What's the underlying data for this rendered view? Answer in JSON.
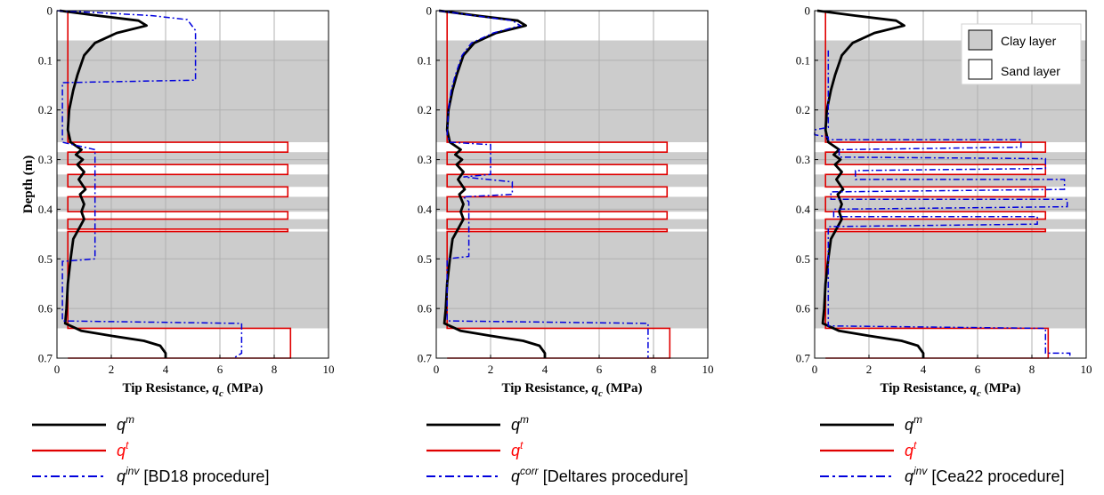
{
  "colors": {
    "measured": "#000000",
    "true": "#e00000",
    "corrected": "#0000dd",
    "clay": "#cccccc",
    "grid": "#b0b0b0"
  },
  "chart_data": [
    {
      "type": "line",
      "xlabel_main": "Tip Resistance, ",
      "xlabel_sym": "q",
      "xlabel_sub": "c",
      "xlabel_unit": " (MPa)",
      "ylabel": "Depth (m)",
      "xlim": [
        0,
        10
      ],
      "ylim": [
        0,
        0.7
      ],
      "y_inverted": true,
      "xticks": [
        "0",
        "2",
        "4",
        "6",
        "8",
        "10"
      ],
      "yticks": [
        "0",
        "0.1",
        "0.2",
        "0.3",
        "0.4",
        "0.5",
        "0.6",
        "0.7"
      ],
      "grid": true,
      "clay_layers": [
        [
          0.06,
          0.265
        ],
        [
          0.285,
          0.31
        ],
        [
          0.33,
          0.355
        ],
        [
          0.375,
          0.405
        ],
        [
          0.42,
          0.44
        ],
        [
          0.445,
          0.64
        ]
      ],
      "true_profile": {
        "base": 0.4,
        "sand": [
          [
            0.265,
            0.285,
            8.5
          ],
          [
            0.31,
            0.33,
            8.5
          ],
          [
            0.355,
            0.375,
            8.5
          ],
          [
            0.405,
            0.42,
            8.5
          ],
          [
            0.44,
            0.445,
            8.5
          ],
          [
            0.64,
            0.7,
            8.6
          ]
        ]
      },
      "series": [
        {
          "role": "measured",
          "points": [
            [
              0.1,
              0
            ],
            [
              1.5,
              0.01
            ],
            [
              3.0,
              0.02
            ],
            [
              3.3,
              0.03
            ],
            [
              2.2,
              0.045
            ],
            [
              1.4,
              0.065
            ],
            [
              1.0,
              0.09
            ],
            [
              0.75,
              0.13
            ],
            [
              0.6,
              0.16
            ],
            [
              0.45,
              0.2
            ],
            [
              0.4,
              0.24
            ],
            [
              0.5,
              0.265
            ],
            [
              0.9,
              0.28
            ],
            [
              0.7,
              0.29
            ],
            [
              0.95,
              0.3
            ],
            [
              0.75,
              0.31
            ],
            [
              1.0,
              0.325
            ],
            [
              0.8,
              0.34
            ],
            [
              1.05,
              0.36
            ],
            [
              0.85,
              0.37
            ],
            [
              1.0,
              0.39
            ],
            [
              0.9,
              0.405
            ],
            [
              1.0,
              0.42
            ],
            [
              0.8,
              0.44
            ],
            [
              0.6,
              0.46
            ],
            [
              0.5,
              0.5
            ],
            [
              0.4,
              0.55
            ],
            [
              0.35,
              0.6
            ],
            [
              0.3,
              0.63
            ],
            [
              0.9,
              0.645
            ],
            [
              2.0,
              0.655
            ],
            [
              3.2,
              0.665
            ],
            [
              3.8,
              0.675
            ],
            [
              4.0,
              0.69
            ],
            [
              4.0,
              0.7
            ]
          ]
        },
        {
          "role": "corrected",
          "name_base": "q",
          "name_sup": "inv",
          "name_suffix": " [BD18 procedure]",
          "points": [
            [
              0,
              0
            ],
            [
              1.5,
              0.004
            ],
            [
              3.5,
              0.01
            ],
            [
              4.8,
              0.018
            ],
            [
              5.1,
              0.04
            ],
            [
              5.1,
              0.14
            ],
            [
              0.2,
              0.145
            ],
            [
              0.2,
              0.265
            ],
            [
              1.4,
              0.28
            ],
            [
              1.4,
              0.5
            ],
            [
              0.2,
              0.505
            ],
            [
              0.2,
              0.625
            ],
            [
              6.8,
              0.63
            ],
            [
              6.8,
              0.69
            ],
            [
              6.5,
              0.7
            ]
          ]
        }
      ]
    },
    {
      "type": "line",
      "xlabel_main": "Tip Resistance, ",
      "xlabel_sym": "q",
      "xlabel_sub": "c",
      "xlabel_unit": " (MPa)",
      "ylabel": "",
      "xlim": [
        0,
        10
      ],
      "ylim": [
        0,
        0.7
      ],
      "y_inverted": true,
      "xticks": [
        "0",
        "2",
        "4",
        "6",
        "8",
        "10"
      ],
      "yticks": [
        "0",
        "0.1",
        "0.2",
        "0.3",
        "0.4",
        "0.5",
        "0.6",
        "0.7"
      ],
      "grid": true,
      "clay_layers": [
        [
          0.06,
          0.265
        ],
        [
          0.285,
          0.31
        ],
        [
          0.33,
          0.355
        ],
        [
          0.375,
          0.405
        ],
        [
          0.42,
          0.44
        ],
        [
          0.445,
          0.64
        ]
      ],
      "true_profile": {
        "base": 0.4,
        "sand": [
          [
            0.265,
            0.285,
            8.5
          ],
          [
            0.31,
            0.33,
            8.5
          ],
          [
            0.355,
            0.375,
            8.5
          ],
          [
            0.405,
            0.42,
            8.5
          ],
          [
            0.44,
            0.445,
            8.5
          ],
          [
            0.64,
            0.7,
            8.6
          ]
        ]
      },
      "series": [
        {
          "role": "measured",
          "points": [
            [
              0.1,
              0
            ],
            [
              1.5,
              0.01
            ],
            [
              3.0,
              0.02
            ],
            [
              3.3,
              0.03
            ],
            [
              2.2,
              0.045
            ],
            [
              1.4,
              0.065
            ],
            [
              1.0,
              0.09
            ],
            [
              0.75,
              0.13
            ],
            [
              0.6,
              0.16
            ],
            [
              0.45,
              0.2
            ],
            [
              0.4,
              0.24
            ],
            [
              0.5,
              0.265
            ],
            [
              0.9,
              0.28
            ],
            [
              0.7,
              0.29
            ],
            [
              0.95,
              0.3
            ],
            [
              0.75,
              0.31
            ],
            [
              1.0,
              0.325
            ],
            [
              0.8,
              0.34
            ],
            [
              1.05,
              0.36
            ],
            [
              0.85,
              0.37
            ],
            [
              1.0,
              0.39
            ],
            [
              0.9,
              0.405
            ],
            [
              1.0,
              0.42
            ],
            [
              0.8,
              0.44
            ],
            [
              0.6,
              0.46
            ],
            [
              0.5,
              0.5
            ],
            [
              0.4,
              0.55
            ],
            [
              0.35,
              0.6
            ],
            [
              0.3,
              0.63
            ],
            [
              0.9,
              0.645
            ],
            [
              2.0,
              0.655
            ],
            [
              3.2,
              0.665
            ],
            [
              3.8,
              0.675
            ],
            [
              4.0,
              0.69
            ],
            [
              4.0,
              0.7
            ]
          ]
        },
        {
          "role": "corrected",
          "name_base": "q",
          "name_sup": "corr",
          "name_suffix": " [Deltares procedure]",
          "points": [
            [
              0.1,
              0
            ],
            [
              1.4,
              0.01
            ],
            [
              2.8,
              0.02
            ],
            [
              3.1,
              0.03
            ],
            [
              2.1,
              0.045
            ],
            [
              1.3,
              0.065
            ],
            [
              0.95,
              0.09
            ],
            [
              0.7,
              0.13
            ],
            [
              0.55,
              0.16
            ],
            [
              0.45,
              0.2
            ],
            [
              0.4,
              0.25
            ],
            [
              0.5,
              0.265
            ],
            [
              2.0,
              0.27
            ],
            [
              2.0,
              0.33
            ],
            [
              1.0,
              0.335
            ],
            [
              2.8,
              0.345
            ],
            [
              2.8,
              0.37
            ],
            [
              1.0,
              0.375
            ],
            [
              1.2,
              0.385
            ],
            [
              1.2,
              0.495
            ],
            [
              0.4,
              0.5
            ],
            [
              0.4,
              0.625
            ],
            [
              7.8,
              0.63
            ],
            [
              7.8,
              0.7
            ]
          ]
        }
      ]
    },
    {
      "type": "line",
      "xlabel_main": "Tip Resistance, ",
      "xlabel_sym": "q",
      "xlabel_sub": "c",
      "xlabel_unit": " (MPa)",
      "ylabel": "",
      "xlim": [
        0,
        10
      ],
      "ylim": [
        0,
        0.7
      ],
      "y_inverted": true,
      "xticks": [
        "0",
        "2",
        "4",
        "6",
        "8",
        "10"
      ],
      "yticks": [
        "0",
        "0.1",
        "0.2",
        "0.3",
        "0.4",
        "0.5",
        "0.6",
        "0.7"
      ],
      "grid": true,
      "clay_layers": [
        [
          0.06,
          0.265
        ],
        [
          0.285,
          0.31
        ],
        [
          0.33,
          0.355
        ],
        [
          0.375,
          0.405
        ],
        [
          0.42,
          0.44
        ],
        [
          0.445,
          0.64
        ]
      ],
      "true_profile": {
        "base": 0.4,
        "sand": [
          [
            0.265,
            0.285,
            8.5
          ],
          [
            0.31,
            0.33,
            8.5
          ],
          [
            0.355,
            0.375,
            8.5
          ],
          [
            0.405,
            0.42,
            8.5
          ],
          [
            0.44,
            0.445,
            8.5
          ],
          [
            0.64,
            0.7,
            8.6
          ]
        ]
      },
      "layer_legend": {
        "clay": "Clay layer",
        "sand": "Sand layer"
      },
      "series": [
        {
          "role": "measured",
          "points": [
            [
              0.1,
              0
            ],
            [
              1.5,
              0.01
            ],
            [
              3.0,
              0.02
            ],
            [
              3.3,
              0.03
            ],
            [
              2.2,
              0.045
            ],
            [
              1.4,
              0.065
            ],
            [
              1.0,
              0.09
            ],
            [
              0.75,
              0.13
            ],
            [
              0.6,
              0.16
            ],
            [
              0.45,
              0.2
            ],
            [
              0.4,
              0.24
            ],
            [
              0.5,
              0.265
            ],
            [
              0.9,
              0.28
            ],
            [
              0.7,
              0.29
            ],
            [
              0.95,
              0.3
            ],
            [
              0.75,
              0.31
            ],
            [
              1.0,
              0.325
            ],
            [
              0.8,
              0.34
            ],
            [
              1.05,
              0.36
            ],
            [
              0.85,
              0.37
            ],
            [
              1.0,
              0.39
            ],
            [
              0.9,
              0.405
            ],
            [
              1.0,
              0.42
            ],
            [
              0.8,
              0.44
            ],
            [
              0.6,
              0.46
            ],
            [
              0.5,
              0.5
            ],
            [
              0.4,
              0.55
            ],
            [
              0.35,
              0.6
            ],
            [
              0.3,
              0.63
            ],
            [
              0.9,
              0.645
            ],
            [
              2.0,
              0.655
            ],
            [
              3.2,
              0.665
            ],
            [
              3.8,
              0.675
            ],
            [
              4.0,
              0.69
            ],
            [
              4.0,
              0.7
            ]
          ]
        },
        {
          "role": "corrected",
          "name_base": "q",
          "name_sup": "inv",
          "name_suffix": " [Cea22 procedure]",
          "points": [
            [
              0.5,
              0.08
            ],
            [
              0.5,
              0.235
            ],
            [
              0,
              0.24
            ],
            [
              0,
              0.25
            ],
            [
              0.5,
              0.255
            ],
            [
              0.5,
              0.26
            ],
            [
              7.6,
              0.26
            ],
            [
              7.6,
              0.275
            ],
            [
              0.9,
              0.28
            ],
            [
              0.9,
              0.295
            ],
            [
              8.5,
              0.298
            ],
            [
              8.5,
              0.318
            ],
            [
              1.5,
              0.322
            ],
            [
              1.5,
              0.34
            ],
            [
              9.2,
              0.34
            ],
            [
              9.2,
              0.36
            ],
            [
              0.6,
              0.365
            ],
            [
              0.6,
              0.38
            ],
            [
              9.3,
              0.38
            ],
            [
              9.3,
              0.395
            ],
            [
              0.7,
              0.4
            ],
            [
              0.7,
              0.415
            ],
            [
              8.2,
              0.415
            ],
            [
              8.2,
              0.43
            ],
            [
              0.5,
              0.435
            ],
            [
              0.5,
              0.635
            ],
            [
              8.5,
              0.64
            ],
            [
              8.5,
              0.69
            ],
            [
              9.4,
              0.69
            ],
            [
              9.4,
              0.7
            ]
          ]
        }
      ]
    }
  ]
}
